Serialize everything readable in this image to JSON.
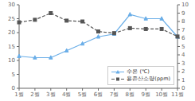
{
  "chart_data": {
    "type": "line",
    "categories": [
      "1월",
      "2월",
      "3월",
      "4월",
      "5월",
      "6월",
      "7월",
      "8월",
      "9월",
      "10월",
      "11월"
    ],
    "series": [
      {
        "name": "수온 (℃)",
        "color": "#6aaee8",
        "values": [
          11.5,
          11.0,
          11.0,
          13.5,
          16.0,
          18.5,
          19.5,
          26.5,
          25.0,
          25.0,
          18.5
        ],
        "marker": "triangle",
        "line_style": "solid"
      },
      {
        "name": "용존산소량(ppm)",
        "color": "#555555",
        "values": [
          7.9,
          8.2,
          9.0,
          8.1,
          8.0,
          6.8,
          6.6,
          7.2,
          7.1,
          7.1,
          6.2
        ],
        "marker": "square",
        "line_style": "dashed",
        "axis": "y2"
      }
    ],
    "ylim": [
      0.0,
      30.0
    ],
    "yticks": [
      0.0,
      5.0,
      10.0,
      15.0,
      20.0,
      25.0,
      30.0
    ],
    "y2lim": [
      0.0,
      10.0
    ],
    "y2ticks": [
      0.0,
      1.0,
      2.0,
      3.0,
      4.0,
      5.0,
      6.0,
      7.0,
      8.0,
      9.0,
      10.0
    ],
    "grid": false,
    "legend": "lower right"
  }
}
